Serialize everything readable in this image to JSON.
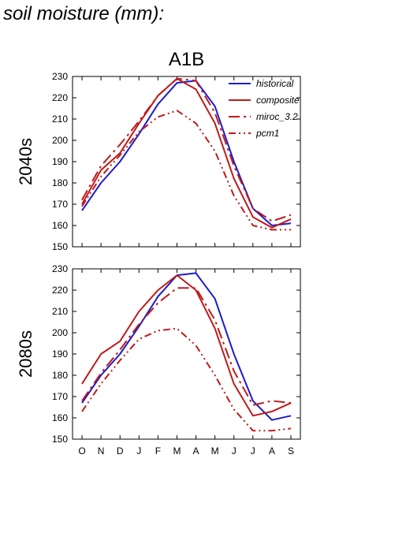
{
  "page_title": "soil moisture (mm):",
  "colors": {
    "historical": "#1c1ccc",
    "projection": "#c01a1a",
    "axis": "#000000"
  },
  "chart_data": [
    {
      "type": "line",
      "title": "A1B",
      "ylabel": "2040s",
      "categories": [
        "O",
        "N",
        "D",
        "J",
        "F",
        "M",
        "A",
        "M",
        "J",
        "J",
        "A",
        "S"
      ],
      "ylim": [
        150,
        230
      ],
      "yticks": [
        150,
        160,
        170,
        180,
        190,
        200,
        210,
        220,
        230
      ],
      "legend": "top-right",
      "series": [
        {
          "name": "historical",
          "color": "#1c1ccc",
          "dash": "solid",
          "values": [
            167,
            180,
            190,
            203,
            217,
            227,
            228,
            216,
            190,
            168,
            160,
            161
          ]
        },
        {
          "name": "composite",
          "color": "#c01a1a",
          "dash": "solid",
          "values": [
            170,
            186,
            194,
            208,
            221,
            229,
            224,
            208,
            182,
            164,
            159,
            163
          ]
        },
        {
          "name": "miroc_3.2",
          "color": "#c01a1a",
          "dash": "dashdot",
          "values": [
            172,
            188,
            198,
            209,
            221,
            229,
            228,
            213,
            188,
            168,
            162,
            165
          ]
        },
        {
          "name": "pcm1",
          "color": "#c01a1a",
          "dash": "dashdotdot",
          "values": [
            169,
            183,
            193,
            204,
            211,
            214,
            208,
            195,
            174,
            160,
            158,
            158
          ]
        }
      ]
    },
    {
      "type": "line",
      "title": "",
      "ylabel": "2080s",
      "categories": [
        "O",
        "N",
        "D",
        "J",
        "F",
        "M",
        "A",
        "M",
        "J",
        "J",
        "A",
        "S"
      ],
      "ylim": [
        150,
        230
      ],
      "yticks": [
        150,
        160,
        170,
        180,
        190,
        200,
        210,
        220,
        230
      ],
      "series": [
        {
          "name": "historical",
          "color": "#1c1ccc",
          "dash": "solid",
          "values": [
            167,
            180,
            190,
            203,
            217,
            227,
            228,
            216,
            190,
            168,
            159,
            161
          ]
        },
        {
          "name": "composite",
          "color": "#c01a1a",
          "dash": "solid",
          "values": [
            176,
            190,
            196,
            210,
            220,
            227,
            220,
            202,
            176,
            161,
            163,
            167
          ]
        },
        {
          "name": "miroc_3.2",
          "color": "#c01a1a",
          "dash": "dashdot",
          "values": [
            168,
            181,
            192,
            204,
            214,
            221,
            221,
            206,
            182,
            166,
            168,
            167
          ]
        },
        {
          "name": "pcm1",
          "color": "#c01a1a",
          "dash": "dashdotdot",
          "values": [
            163,
            176,
            187,
            197,
            201,
            202,
            194,
            180,
            164,
            154,
            154,
            155
          ]
        }
      ]
    }
  ]
}
